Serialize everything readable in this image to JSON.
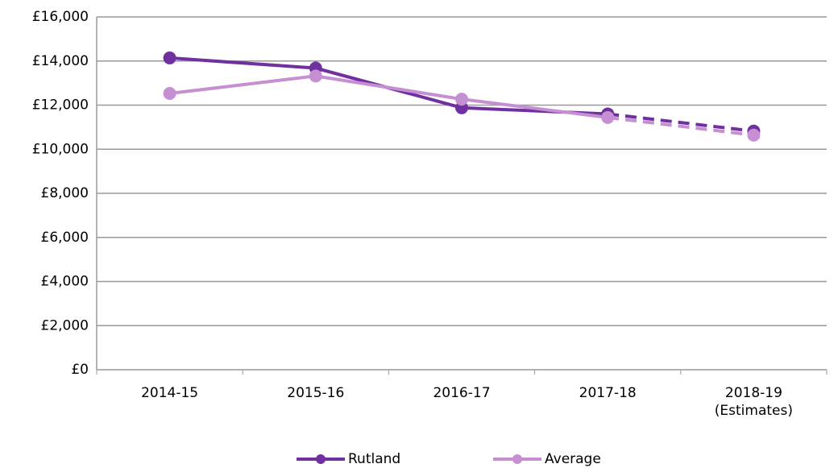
{
  "chart_data": {
    "type": "line",
    "categories": [
      "2014-15",
      "2015-16",
      "2016-17",
      "2017-18",
      "2018-19 (Estimates)"
    ],
    "series": [
      {
        "name": "Rutland",
        "color": "#7030a0",
        "values": [
          14140,
          13680,
          11880,
          11600,
          10820
        ]
      },
      {
        "name": "Average",
        "color": "#c58fd1",
        "values": [
          12530,
          13320,
          12270,
          11440,
          10640
        ]
      }
    ],
    "ylim": [
      0,
      16000
    ],
    "yticks": [
      {
        "value": 0,
        "label": "£0"
      },
      {
        "value": 2000,
        "label": "£2,000"
      },
      {
        "value": 4000,
        "label": "£4,000"
      },
      {
        "value": 6000,
        "label": "£6,000"
      },
      {
        "value": 8000,
        "label": "£8,000"
      },
      {
        "value": 10000,
        "label": "£10,000"
      },
      {
        "value": 12000,
        "label": "£12,000"
      },
      {
        "value": 14000,
        "label": "£14,000"
      },
      {
        "value": 16000,
        "label": "£16,000"
      }
    ],
    "grid": true,
    "dash_last_segment": true,
    "legend": "bottom"
  }
}
